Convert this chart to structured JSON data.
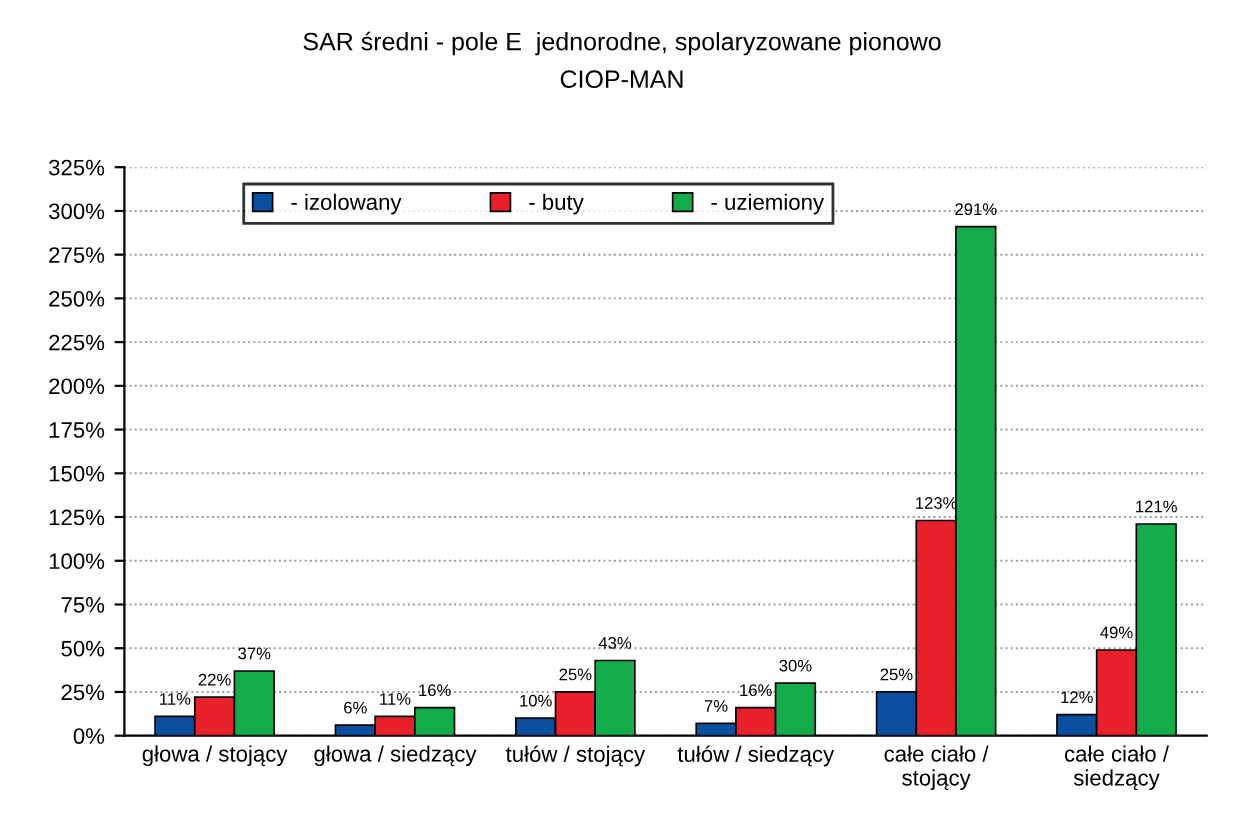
{
  "chart_data": {
    "type": "bar",
    "title": "SAR średni - pole E  jednorodne, spolaryzowane pionowo",
    "subtitle": "CIOP-MAN",
    "categories": [
      "głowa / stojący",
      "głowa / siedzący",
      "tułów / stojący",
      "tułów / siedzący",
      "całe ciało /\nstojący",
      "całe ciało /\nsiedzący"
    ],
    "series": [
      {
        "name": "- izolowany",
        "color": "#0a4fa0",
        "values": [
          11,
          6,
          10,
          7,
          25,
          12
        ],
        "value_labels": [
          "11%",
          "6%",
          "10%",
          "7%",
          "25%",
          "12%"
        ]
      },
      {
        "name": "- buty",
        "color": "#e8202a",
        "values": [
          22,
          11,
          25,
          16,
          123,
          49
        ],
        "value_labels": [
          "22%",
          "11%",
          "25%",
          "16%",
          "123%",
          "49%"
        ]
      },
      {
        "name": "- uziemiony",
        "color": "#12ad4a",
        "values": [
          37,
          16,
          43,
          30,
          291,
          121
        ],
        "value_labels": [
          "37%",
          "16%",
          "43%",
          "30%",
          "291%",
          "121%"
        ]
      }
    ],
    "ylim": [
      0,
      325
    ],
    "yticks": [
      {
        "value": 0,
        "label": "0%"
      },
      {
        "value": 25,
        "label": "25%"
      },
      {
        "value": 50,
        "label": "50%"
      },
      {
        "value": 75,
        "label": "75%"
      },
      {
        "value": 100,
        "label": "100%"
      },
      {
        "value": 125,
        "label": "125%"
      },
      {
        "value": 150,
        "label": "150%"
      },
      {
        "value": 175,
        "label": "175%"
      },
      {
        "value": 200,
        "label": "200%"
      },
      {
        "value": 225,
        "label": "225%"
      },
      {
        "value": 250,
        "label": "250%"
      },
      {
        "value": 275,
        "label": "275%"
      },
      {
        "value": 300,
        "label": "300%"
      },
      {
        "value": 325,
        "label": "325%"
      }
    ],
    "grid": "y",
    "legend": "top left"
  }
}
